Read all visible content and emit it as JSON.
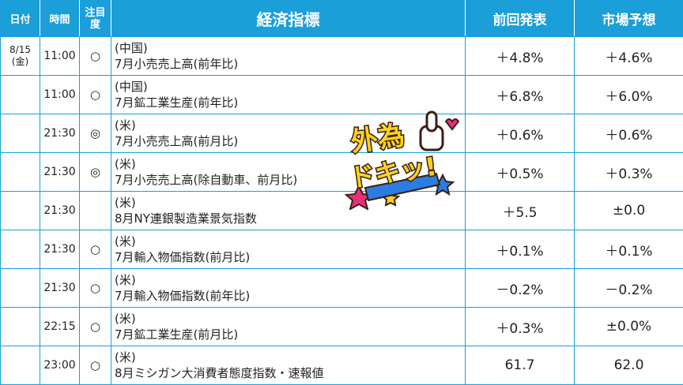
{
  "headers": {
    "date": "日付",
    "time": "時間",
    "attention": "注目度",
    "indicator": "経済指標",
    "previous": "前回発表",
    "forecast": "市場予想"
  },
  "rows": [
    {
      "date_day": "8/15",
      "date_weekday": "(金)",
      "time": "11:00",
      "attention": "○",
      "country": "(中国)",
      "name": "7月小売売上高(前年比)",
      "previous": "＋4.8%",
      "forecast": "＋4.6%"
    },
    {
      "date_day": "",
      "date_weekday": "",
      "time": "11:00",
      "attention": "○",
      "country": "(中国)",
      "name": "7月鉱工業生産(前年比)",
      "previous": "＋6.8%",
      "forecast": "＋6.0%"
    },
    {
      "date_day": "",
      "date_weekday": "",
      "time": "21:30",
      "attention": "◎",
      "country": "(米)",
      "name": "7月小売売上高(前月比)",
      "previous": "＋0.6%",
      "forecast": "＋0.6%"
    },
    {
      "date_day": "",
      "date_weekday": "",
      "time": "21:30",
      "attention": "◎",
      "country": "(米)",
      "name": "7月小売売上高(除自動車、前月比)",
      "previous": "＋0.5%",
      "forecast": "＋0.3%"
    },
    {
      "date_day": "",
      "date_weekday": "",
      "time": "21:30",
      "attention": "",
      "country": "(米)",
      "name": "8月NY連銀製造業景気指数",
      "previous": "＋5.5",
      "forecast": "±0.0"
    },
    {
      "date_day": "",
      "date_weekday": "",
      "time": "21:30",
      "attention": "○",
      "country": "(米)",
      "name": "7月輸入物価指数(前月比)",
      "previous": "＋0.1%",
      "forecast": "＋0.1%"
    },
    {
      "date_day": "",
      "date_weekday": "",
      "time": "21:30",
      "attention": "○",
      "country": "(米)",
      "name": "7月輸入物価指数(前年比)",
      "previous": "－0.2%",
      "forecast": "－0.2%"
    },
    {
      "date_day": "",
      "date_weekday": "",
      "time": "22:15",
      "attention": "○",
      "country": "(米)",
      "name": "7月鉱工業生産(前月比)",
      "previous": "＋0.3%",
      "forecast": "±0.0%"
    },
    {
      "date_day": "",
      "date_weekday": "",
      "time": "23:00",
      "attention": "○",
      "country": "(米)",
      "name": "8月ミシガン大消費者態度指数・速報値",
      "previous": "61.7",
      "forecast": "62.0"
    }
  ],
  "logo": {
    "line1": "外為",
    "line2": "ドキッ!",
    "colors": {
      "text": "#ffd21a",
      "outline": "#3a1f12",
      "star_pink": "#e8307a",
      "star_blue": "#2a7de1",
      "star_yellow": "#ffd21a"
    }
  },
  "colors": {
    "header_bg": "#1a9fd9",
    "border": "#1a9fd9",
    "header_text": "#ffffff"
  }
}
